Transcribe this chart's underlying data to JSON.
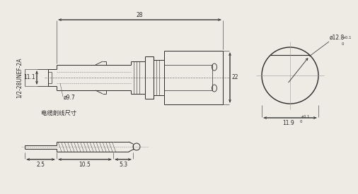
{
  "bg_color": "#eeebe5",
  "line_color": "#2a2a2a",
  "main_label": "1/2-28UNEF-2A",
  "dim_28": "28",
  "dim_11_1": "11.1",
  "dim_9_7": "ø9.7",
  "dim_22": "22",
  "dim_12_8": "ø12.8",
  "dim_11_9": "11.9",
  "cable_label": "电缆剖线尺寸",
  "dim_2_5": "2.5",
  "dim_10_5": "10.5",
  "dim_5_3": "5.3",
  "tol_top": "+0.1",
  "tol_bot": "0"
}
